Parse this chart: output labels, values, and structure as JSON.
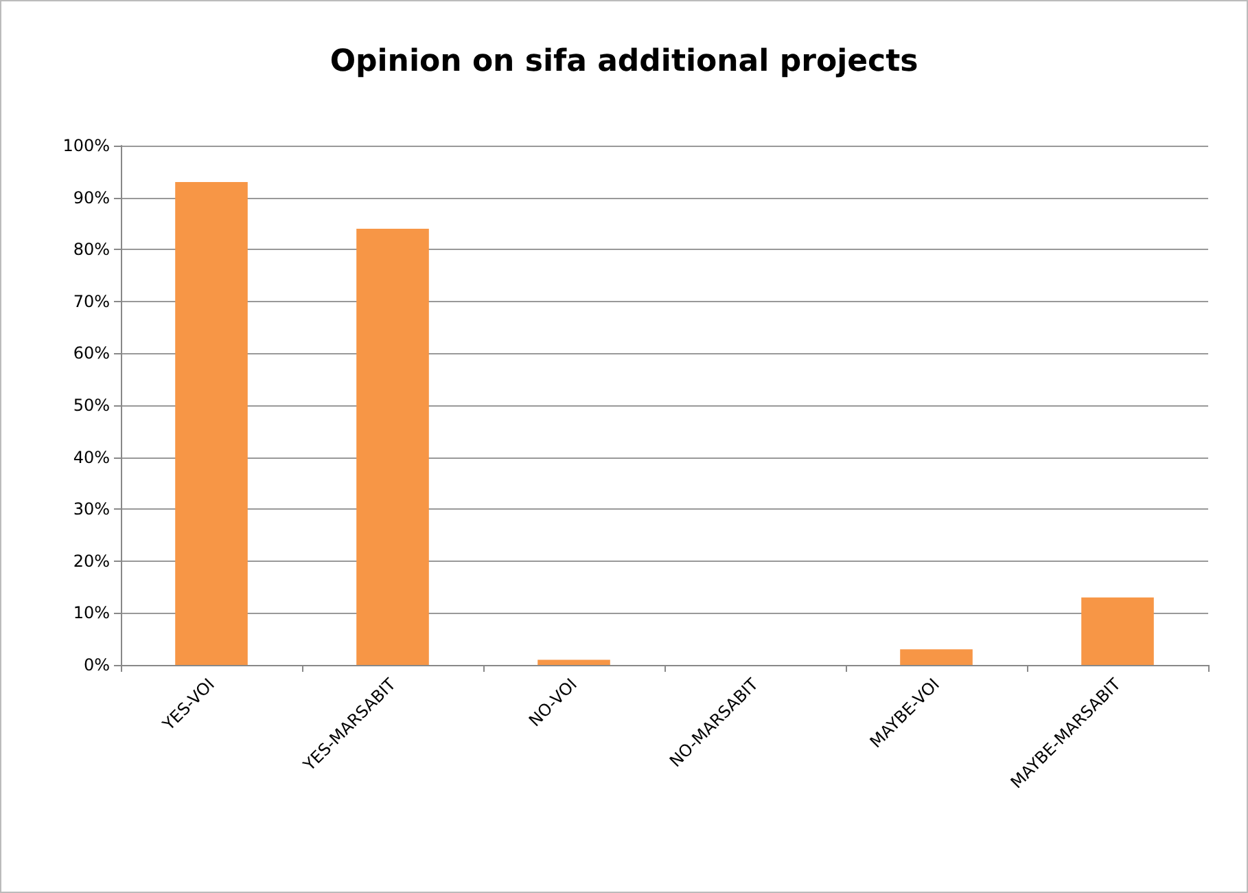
{
  "chart_data": {
    "type": "bar",
    "title": "Opinion on sifa additional projects",
    "categories": [
      "YES-VOI",
      "YES-MARSABIT",
      "NO-VOI",
      "NO-MARSABIT",
      "MAYBE-VOI",
      "MAYBE-MARSABIT"
    ],
    "values": [
      93,
      84,
      1,
      0,
      3,
      13
    ],
    "color": "#f79646",
    "ylim": [
      0,
      100
    ],
    "yticks": [
      {
        "value": 0,
        "label": "0%"
      },
      {
        "value": 10,
        "label": "10%"
      },
      {
        "value": 20,
        "label": "20%"
      },
      {
        "value": 30,
        "label": "30%"
      },
      {
        "value": 40,
        "label": "40%"
      },
      {
        "value": 50,
        "label": "50%"
      },
      {
        "value": 60,
        "label": "60%"
      },
      {
        "value": 70,
        "label": "70%"
      },
      {
        "value": 80,
        "label": "80%"
      },
      {
        "value": 90,
        "label": "90%"
      },
      {
        "value": 100,
        "label": "100%"
      }
    ],
    "grid": "y"
  }
}
